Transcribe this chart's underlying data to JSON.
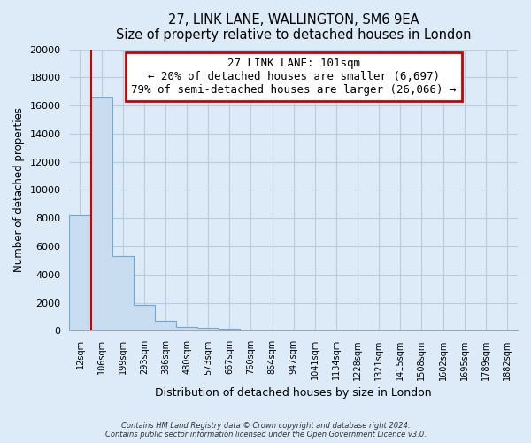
{
  "title": "27, LINK LANE, WALLINGTON, SM6 9EA",
  "subtitle": "Size of property relative to detached houses in London",
  "xlabel": "Distribution of detached houses by size in London",
  "ylabel": "Number of detached properties",
  "categories": [
    "12sqm",
    "106sqm",
    "199sqm",
    "293sqm",
    "386sqm",
    "480sqm",
    "573sqm",
    "667sqm",
    "760sqm",
    "854sqm",
    "947sqm",
    "1041sqm",
    "1134sqm",
    "1228sqm",
    "1321sqm",
    "1415sqm",
    "1508sqm",
    "1602sqm",
    "1695sqm",
    "1789sqm",
    "1882sqm"
  ],
  "values": [
    8200,
    16600,
    5300,
    1850,
    750,
    300,
    200,
    150,
    50,
    0,
    0,
    0,
    0,
    0,
    0,
    0,
    0,
    0,
    0,
    0,
    0
  ],
  "bar_color": "#c8ddf0",
  "bar_edge_color": "#6ea8d8",
  "red_line_color": "#cc0000",
  "annotation_title": "27 LINK LANE: 101sqm",
  "annotation_line1": "← 20% of detached houses are smaller (6,697)",
  "annotation_line2": "79% of semi-detached houses are larger (26,066) →",
  "ylim": [
    0,
    20000
  ],
  "yticks": [
    0,
    2000,
    4000,
    6000,
    8000,
    10000,
    12000,
    14000,
    16000,
    18000,
    20000
  ],
  "bg_color": "#ddeaf8",
  "plot_bg_color": "#ddeaf8",
  "grid_color": "#b8cee0",
  "footer_line1": "Contains HM Land Registry data © Crown copyright and database right 2024.",
  "footer_line2": "Contains public sector information licensed under the Open Government Licence v3.0."
}
